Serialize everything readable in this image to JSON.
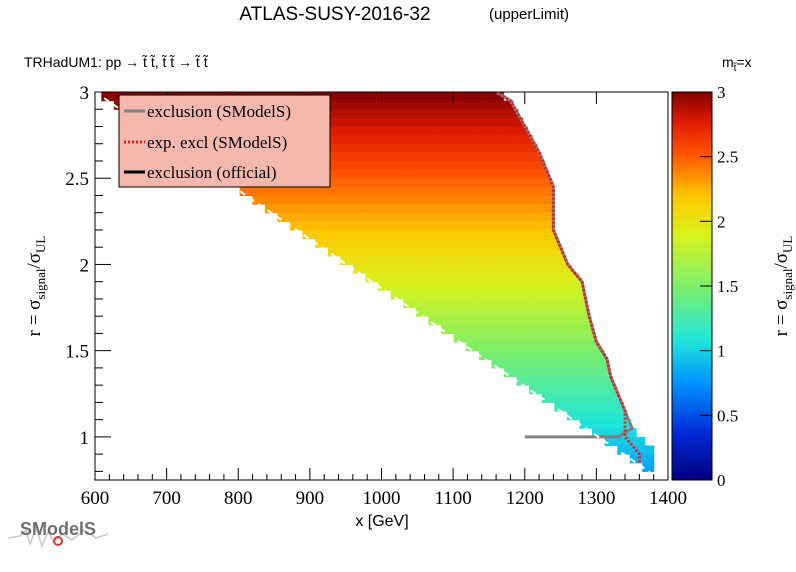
{
  "chart_data": {
    "type": "heatmap",
    "title": "ATLAS-SUSY-2016-32",
    "title_suffix": "(upperLimit)",
    "subtitle": "TRHadUM1: pp  → t̃ t̃, t̃ t̃ → t̃ t̃",
    "mass_label": "m",
    "mass_sub": "t̃",
    "mass_suffix": "=x",
    "xlabel": "x [GeV]",
    "ylabel_main": "r = σ",
    "ylabel_sub1": "signal",
    "ylabel_slash": "/σ",
    "ylabel_sub2": "UL",
    "xlim": [
      600,
      1400
    ],
    "ylim": [
      0.75,
      3.0
    ],
    "xticks": [
      600,
      700,
      800,
      900,
      1000,
      1100,
      1200,
      1300,
      1400
    ],
    "xtick_labels": [
      "600",
      "700",
      "800",
      "900",
      "1000",
      "1100",
      "1200",
      "1300",
      "1400"
    ],
    "yticks": [
      1,
      1.5,
      2,
      2.5,
      3
    ],
    "ytick_labels": [
      "1",
      "1.5",
      "2",
      "2.5",
      "3"
    ],
    "colorbar": {
      "range": [
        0,
        3
      ],
      "ticks": [
        0,
        0.5,
        1,
        1.5,
        2,
        2.5,
        3
      ],
      "tick_labels": [
        "0",
        "0.5",
        "1",
        "1.5",
        "2",
        "2.5",
        "3"
      ],
      "label_main": "r = σ",
      "label_sub1": "signal",
      "label_slash": "/σ",
      "label_sub2": "UL"
    },
    "region": {
      "lower_edge": [
        [
          600,
          3.0
        ],
        [
          1380,
          0.78
        ]
      ],
      "upper_boundary": [
        [
          1160,
          3.0
        ],
        [
          1180,
          2.95
        ],
        [
          1200,
          2.8
        ],
        [
          1220,
          2.65
        ],
        [
          1240,
          2.45
        ],
        [
          1240,
          2.2
        ],
        [
          1260,
          2.0
        ],
        [
          1280,
          1.9
        ],
        [
          1290,
          1.7
        ],
        [
          1300,
          1.55
        ],
        [
          1315,
          1.45
        ],
        [
          1320,
          1.35
        ],
        [
          1330,
          1.25
        ],
        [
          1340,
          1.15
        ],
        [
          1350,
          1.05
        ],
        [
          1365,
          0.98
        ],
        [
          1380,
          0.95
        ],
        [
          1380,
          0.78
        ]
      ]
    },
    "series": [
      {
        "name": "exclusion (SModelS)",
        "style": "solid",
        "color": "#808080",
        "points": [
          [
            1160,
            3.0
          ],
          [
            1180,
            2.95
          ],
          [
            1200,
            2.8
          ],
          [
            1220,
            2.65
          ],
          [
            1240,
            2.45
          ],
          [
            1240,
            2.2
          ],
          [
            1260,
            2.0
          ],
          [
            1280,
            1.9
          ],
          [
            1290,
            1.7
          ],
          [
            1300,
            1.55
          ],
          [
            1315,
            1.45
          ],
          [
            1320,
            1.35
          ],
          [
            1330,
            1.25
          ],
          [
            1340,
            1.15
          ],
          [
            1350,
            1.05
          ],
          [
            1330,
            1.0
          ],
          [
            1300,
            1.0
          ],
          [
            1200,
            1.0
          ]
        ]
      },
      {
        "name": "exp. excl (SModelS)",
        "style": "dotted",
        "color": "#e21c1c",
        "points": [
          [
            1160,
            3.0
          ],
          [
            1180,
            2.95
          ],
          [
            1200,
            2.8
          ],
          [
            1220,
            2.65
          ],
          [
            1240,
            2.45
          ],
          [
            1240,
            2.2
          ],
          [
            1260,
            2.0
          ],
          [
            1280,
            1.9
          ],
          [
            1290,
            1.7
          ],
          [
            1300,
            1.55
          ],
          [
            1315,
            1.45
          ],
          [
            1320,
            1.35
          ],
          [
            1330,
            1.25
          ],
          [
            1340,
            1.15
          ],
          [
            1340,
            1.0
          ],
          [
            1360,
            0.9
          ],
          [
            1360,
            0.85
          ]
        ]
      },
      {
        "name": "exclusion (official)",
        "style": "solid",
        "color": "#000000",
        "points": []
      }
    ],
    "legend": {
      "position": "top-left",
      "entries": [
        "exclusion (SModelS)",
        "exp. excl (SModelS)",
        "exclusion (official)"
      ]
    }
  },
  "logo": {
    "text": "SModelS"
  }
}
